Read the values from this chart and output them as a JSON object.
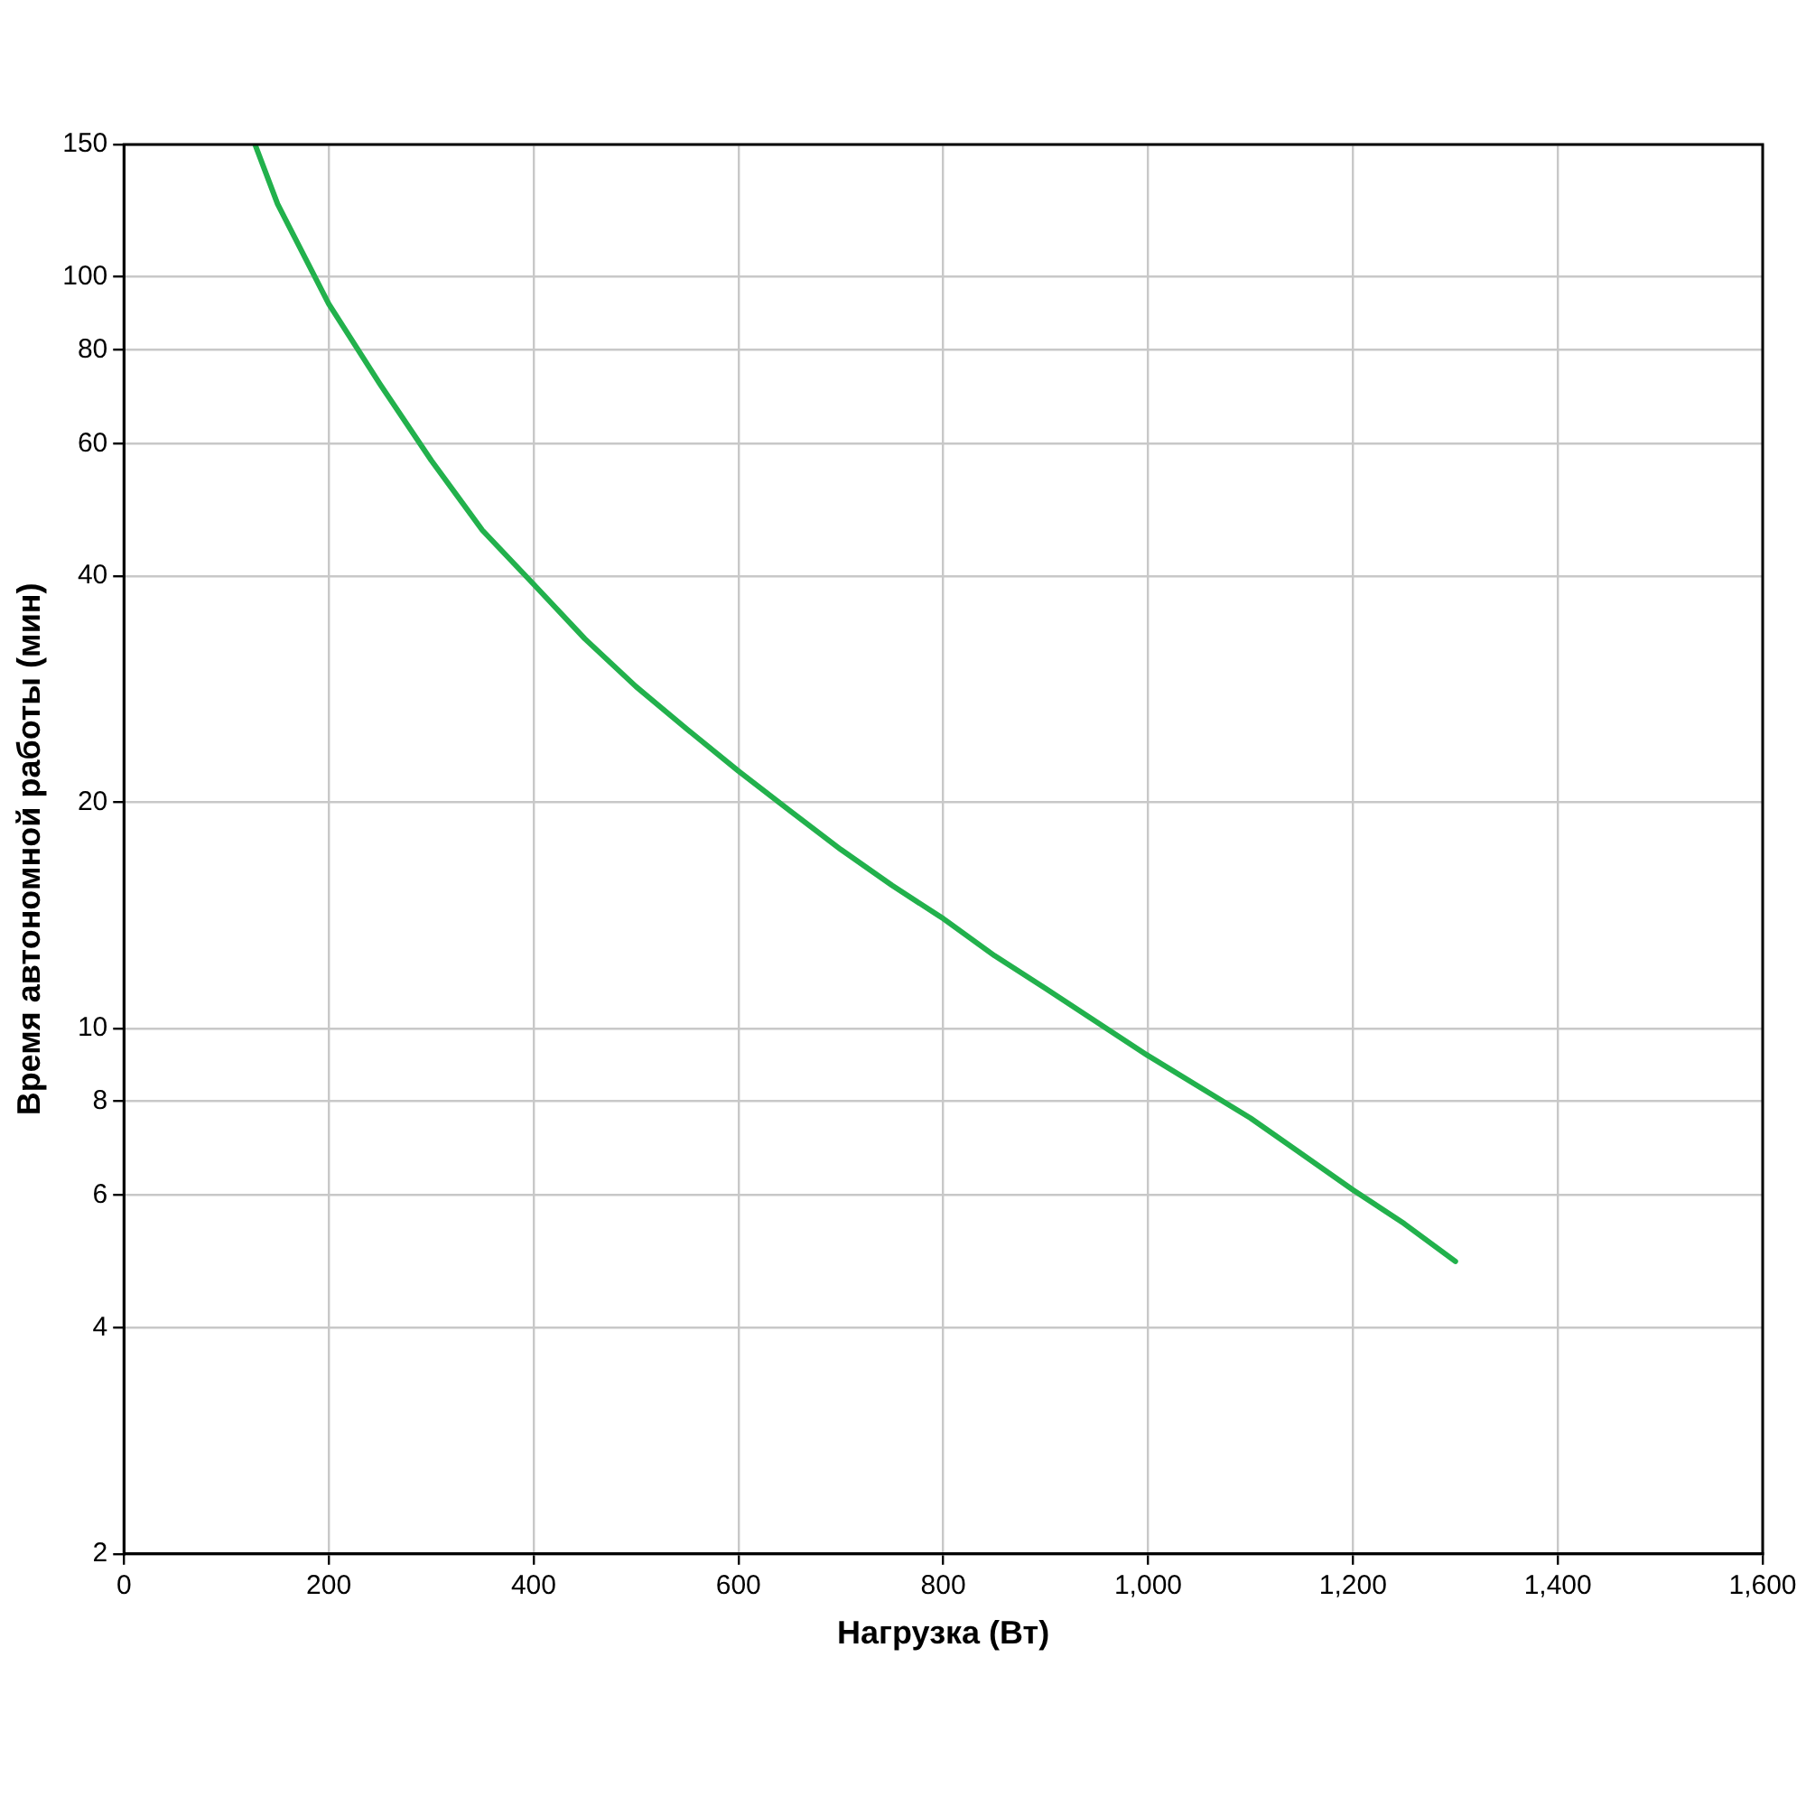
{
  "chart_data": {
    "type": "line",
    "xlabel": "Нагрузка (Вт)",
    "ylabel": "Время автономной работы (мин)",
    "x": [
      128,
      150,
      200,
      250,
      300,
      350,
      400,
      450,
      500,
      550,
      600,
      650,
      700,
      750,
      800,
      850,
      900,
      1000,
      1100,
      1200,
      1250,
      1300
    ],
    "series": [
      {
        "color": "#22b14c",
        "values": [
          150,
          125,
          92,
          72,
          57,
          46,
          39,
          33,
          28.5,
          25,
          22,
          19.5,
          17.3,
          15.5,
          14,
          12.5,
          11.3,
          9.2,
          7.6,
          6.1,
          5.5,
          4.9
        ]
      }
    ],
    "xlim": [
      0,
      1600
    ],
    "xticks": [
      0,
      200,
      400,
      600,
      800,
      {
        "value": 1000,
        "label": "1,000"
      },
      {
        "value": 1200,
        "label": "1,200"
      },
      {
        "value": 1400,
        "label": "1,400"
      },
      {
        "value": 1600,
        "label": "1,600"
      }
    ],
    "ylim": [
      2,
      150
    ],
    "yticks": [
      2,
      4,
      6,
      8,
      10,
      20,
      40,
      60,
      80,
      100,
      150
    ],
    "log": "y",
    "grid": true,
    "legend": false,
    "marker": "none",
    "line_style": "solid"
  }
}
